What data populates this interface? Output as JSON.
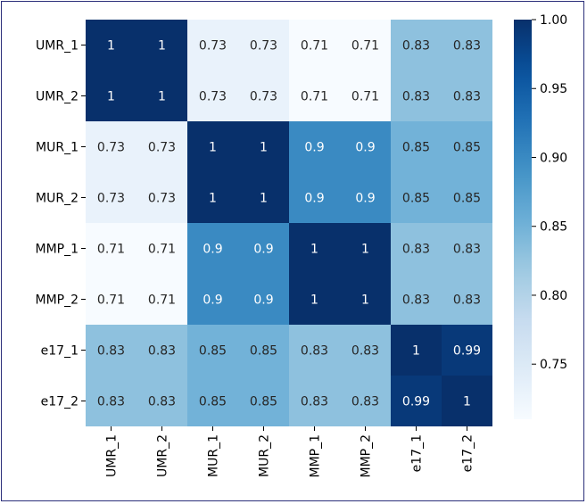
{
  "chart_data": {
    "type": "heatmap",
    "title": "",
    "xlabel": "",
    "ylabel": "",
    "rows": [
      "UMR_1",
      "UMR_2",
      "MUR_1",
      "MUR_2",
      "MMP_1",
      "MMP_2",
      "e17_1",
      "e17_2"
    ],
    "columns": [
      "UMR_1",
      "UMR_2",
      "MUR_1",
      "MUR_2",
      "MMP_1",
      "MMP_2",
      "e17_1",
      "e17_2"
    ],
    "values": [
      [
        1,
        1,
        0.73,
        0.73,
        0.71,
        0.71,
        0.83,
        0.83
      ],
      [
        1,
        1,
        0.73,
        0.73,
        0.71,
        0.71,
        0.83,
        0.83
      ],
      [
        0.73,
        0.73,
        1,
        1,
        0.9,
        0.9,
        0.85,
        0.85
      ],
      [
        0.73,
        0.73,
        1,
        1,
        0.9,
        0.9,
        0.85,
        0.85
      ],
      [
        0.71,
        0.71,
        0.9,
        0.9,
        1,
        1,
        0.83,
        0.83
      ],
      [
        0.71,
        0.71,
        0.9,
        0.9,
        1,
        1,
        0.83,
        0.83
      ],
      [
        0.83,
        0.83,
        0.85,
        0.85,
        0.83,
        0.83,
        1,
        0.99
      ],
      [
        0.83,
        0.83,
        0.85,
        0.85,
        0.83,
        0.83,
        0.99,
        1
      ]
    ],
    "colorbar": {
      "colormap": "Blues",
      "range": [
        0.71,
        1.0
      ],
      "ticks": [
        0.75,
        0.8,
        0.85,
        0.9,
        0.95,
        1.0
      ],
      "tick_labels": [
        "0.75",
        "0.80",
        "0.85",
        "0.90",
        "0.95",
        "1.00"
      ]
    },
    "annotations": true,
    "grid": false
  }
}
